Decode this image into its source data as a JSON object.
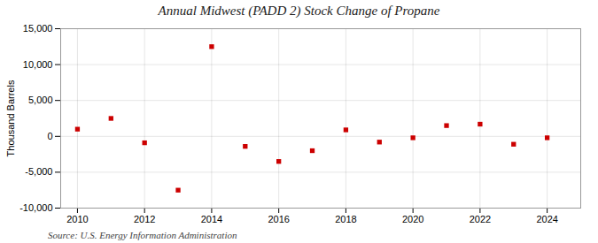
{
  "chart_data": {
    "type": "scatter",
    "title": "Annual Midwest (PADD 2) Stock Change of Propane",
    "ylabel": "Thousand Barrels",
    "source": "Source: U.S. Energy Information Administration",
    "x": [
      2010,
      2011,
      2012,
      2013,
      2014,
      2015,
      2016,
      2017,
      2018,
      2019,
      2020,
      2021,
      2022,
      2023,
      2024
    ],
    "values": [
      1000,
      2500,
      -900,
      -7500,
      12500,
      -1400,
      -3500,
      -2000,
      900,
      -800,
      -200,
      1500,
      1700,
      -1100,
      -200
    ],
    "color": "#cc0000",
    "marker": "square",
    "xlim": [
      2009.5,
      2025.0
    ],
    "xticks": [
      2010,
      2012,
      2014,
      2016,
      2018,
      2020,
      2022,
      2024
    ],
    "ylim": [
      -10000,
      15000
    ],
    "yticks": [
      {
        "value": -10000,
        "label": "-10,000"
      },
      {
        "value": -5000,
        "label": "-5,000"
      },
      0,
      {
        "value": 5000,
        "label": "5,000"
      },
      {
        "value": 10000,
        "label": "10,000"
      },
      {
        "value": 15000,
        "label": "15,000"
      }
    ],
    "grid": true
  }
}
